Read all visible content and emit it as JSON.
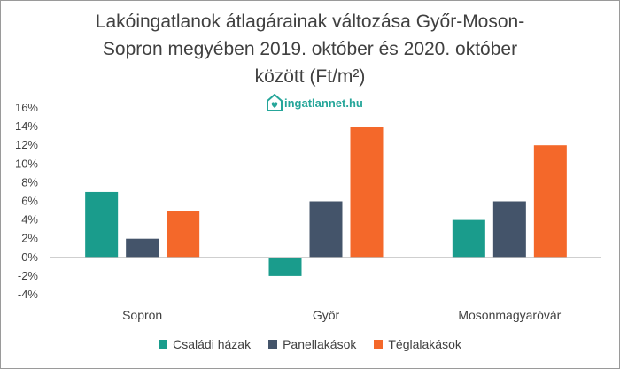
{
  "chart_data": {
    "type": "bar",
    "title_lines": [
      "Lakóingatlanok átlagárainak változása Győr-Moson-",
      "Sopron megyében 2019. október és 2020. október",
      "között (Ft/m²)"
    ],
    "categories": [
      "Sopron",
      "Győr",
      "Mosonmagyaróvár"
    ],
    "series": [
      {
        "name": "Családi házak",
        "color": "#1a9c8c",
        "values": [
          7,
          -2,
          4
        ]
      },
      {
        "name": "Panellakások",
        "color": "#44546a",
        "values": [
          2,
          6,
          6
        ]
      },
      {
        "name": "Téglalakások",
        "color": "#f4682a",
        "values": [
          5,
          14,
          12
        ]
      }
    ],
    "yticks": [
      "16%",
      "14%",
      "12%",
      "10%",
      "8%",
      "6%",
      "4%",
      "2%",
      "0%",
      "-2%",
      "-4%"
    ],
    "ylim": [
      -4,
      16
    ],
    "grid": false,
    "legend_position": "bottom"
  },
  "watermark": {
    "text": "ingatlannet.hu",
    "icon": "house-heart-icon",
    "color": "#26a69a"
  }
}
